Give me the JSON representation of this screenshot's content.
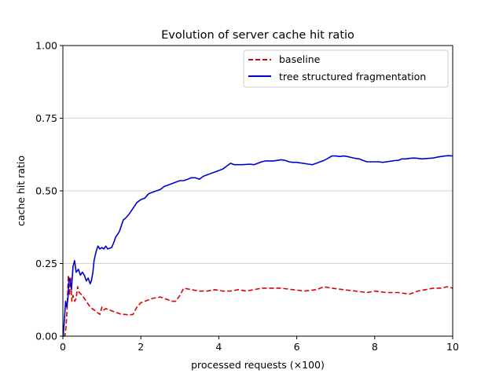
{
  "chart_data": {
    "type": "line",
    "title": "Evolution of server cache hit ratio",
    "xlabel": "processed requests (×100)",
    "ylabel": "cache hit ratio",
    "xlim": [
      0,
      10
    ],
    "ylim": [
      0,
      1
    ],
    "xticks": [
      0,
      2,
      4,
      6,
      8,
      10
    ],
    "xtick_labels": [
      "0",
      "2",
      "4",
      "6",
      "8",
      "10"
    ],
    "yticks": [
      0,
      0.25,
      0.5,
      0.75,
      1.0
    ],
    "ytick_labels": [
      "0.00",
      "0.25",
      "0.50",
      "0.75",
      "1.00"
    ],
    "grid": "horizontal",
    "legend_position": "top-right",
    "series": [
      {
        "name": "baseline",
        "color": "#dd0000",
        "style": "dashed",
        "points": [
          [
            0.01,
            0.0
          ],
          [
            0.05,
            0.0
          ],
          [
            0.08,
            0.03
          ],
          [
            0.11,
            0.1
          ],
          [
            0.14,
            0.21
          ],
          [
            0.17,
            0.14
          ],
          [
            0.2,
            0.2
          ],
          [
            0.23,
            0.12
          ],
          [
            0.26,
            0.14
          ],
          [
            0.3,
            0.12
          ],
          [
            0.34,
            0.13
          ],
          [
            0.38,
            0.17
          ],
          [
            0.42,
            0.15
          ],
          [
            0.5,
            0.14
          ],
          [
            0.6,
            0.12
          ],
          [
            0.7,
            0.1
          ],
          [
            0.8,
            0.09
          ],
          [
            0.9,
            0.08
          ],
          [
            0.95,
            0.075
          ],
          [
            1.0,
            0.1
          ],
          [
            1.05,
            0.09
          ],
          [
            1.1,
            0.095
          ],
          [
            1.2,
            0.09
          ],
          [
            1.3,
            0.085
          ],
          [
            1.4,
            0.08
          ],
          [
            1.5,
            0.075
          ],
          [
            1.6,
            0.075
          ],
          [
            1.7,
            0.073
          ],
          [
            1.8,
            0.075
          ],
          [
            1.9,
            0.1
          ],
          [
            2.0,
            0.115
          ],
          [
            2.1,
            0.12
          ],
          [
            2.2,
            0.125
          ],
          [
            2.3,
            0.13
          ],
          [
            2.5,
            0.135
          ],
          [
            2.6,
            0.13
          ],
          [
            2.8,
            0.12
          ],
          [
            2.9,
            0.12
          ],
          [
            3.0,
            0.14
          ],
          [
            3.1,
            0.165
          ],
          [
            3.3,
            0.16
          ],
          [
            3.5,
            0.155
          ],
          [
            3.7,
            0.155
          ],
          [
            3.9,
            0.16
          ],
          [
            4.1,
            0.155
          ],
          [
            4.3,
            0.155
          ],
          [
            4.5,
            0.16
          ],
          [
            4.7,
            0.155
          ],
          [
            4.9,
            0.16
          ],
          [
            5.1,
            0.165
          ],
          [
            5.3,
            0.165
          ],
          [
            5.6,
            0.165
          ],
          [
            5.9,
            0.16
          ],
          [
            6.2,
            0.155
          ],
          [
            6.5,
            0.16
          ],
          [
            6.7,
            0.17
          ],
          [
            6.9,
            0.165
          ],
          [
            7.2,
            0.16
          ],
          [
            7.5,
            0.155
          ],
          [
            7.8,
            0.15
          ],
          [
            8.0,
            0.155
          ],
          [
            8.3,
            0.15
          ],
          [
            8.6,
            0.15
          ],
          [
            8.9,
            0.145
          ],
          [
            9.1,
            0.155
          ],
          [
            9.3,
            0.16
          ],
          [
            9.5,
            0.165
          ],
          [
            9.7,
            0.165
          ],
          [
            9.85,
            0.17
          ],
          [
            10.0,
            0.165
          ]
        ]
      },
      {
        "name": "tree structured fragmentation",
        "color": "#0000cc",
        "style": "solid",
        "points": [
          [
            0.01,
            0.0
          ],
          [
            0.04,
            0.06
          ],
          [
            0.07,
            0.12
          ],
          [
            0.1,
            0.1
          ],
          [
            0.13,
            0.13
          ],
          [
            0.16,
            0.2
          ],
          [
            0.19,
            0.19
          ],
          [
            0.22,
            0.16
          ],
          [
            0.26,
            0.24
          ],
          [
            0.3,
            0.26
          ],
          [
            0.34,
            0.22
          ],
          [
            0.4,
            0.23
          ],
          [
            0.45,
            0.21
          ],
          [
            0.5,
            0.22
          ],
          [
            0.55,
            0.21
          ],
          [
            0.6,
            0.19
          ],
          [
            0.65,
            0.2
          ],
          [
            0.7,
            0.18
          ],
          [
            0.73,
            0.19
          ],
          [
            0.77,
            0.22
          ],
          [
            0.8,
            0.26
          ],
          [
            0.85,
            0.29
          ],
          [
            0.9,
            0.31
          ],
          [
            0.95,
            0.3
          ],
          [
            1.0,
            0.305
          ],
          [
            1.05,
            0.3
          ],
          [
            1.1,
            0.31
          ],
          [
            1.15,
            0.3
          ],
          [
            1.25,
            0.305
          ],
          [
            1.3,
            0.32
          ],
          [
            1.35,
            0.34
          ],
          [
            1.45,
            0.36
          ],
          [
            1.5,
            0.38
          ],
          [
            1.55,
            0.4
          ],
          [
            1.6,
            0.405
          ],
          [
            1.7,
            0.42
          ],
          [
            1.8,
            0.44
          ],
          [
            1.9,
            0.46
          ],
          [
            2.0,
            0.47
          ],
          [
            2.1,
            0.475
          ],
          [
            2.2,
            0.49
          ],
          [
            2.3,
            0.495
          ],
          [
            2.4,
            0.5
          ],
          [
            2.5,
            0.505
          ],
          [
            2.6,
            0.515
          ],
          [
            2.7,
            0.52
          ],
          [
            2.8,
            0.525
          ],
          [
            2.9,
            0.53
          ],
          [
            3.0,
            0.535
          ],
          [
            3.1,
            0.535
          ],
          [
            3.2,
            0.54
          ],
          [
            3.3,
            0.545
          ],
          [
            3.4,
            0.545
          ],
          [
            3.5,
            0.54
          ],
          [
            3.6,
            0.55
          ],
          [
            3.7,
            0.555
          ],
          [
            3.8,
            0.56
          ],
          [
            3.9,
            0.565
          ],
          [
            4.0,
            0.57
          ],
          [
            4.1,
            0.575
          ],
          [
            4.2,
            0.585
          ],
          [
            4.3,
            0.595
          ],
          [
            4.4,
            0.59
          ],
          [
            4.5,
            0.59
          ],
          [
            4.6,
            0.59
          ],
          [
            4.8,
            0.592
          ],
          [
            4.9,
            0.59
          ],
          [
            5.0,
            0.595
          ],
          [
            5.1,
            0.6
          ],
          [
            5.2,
            0.603
          ],
          [
            5.3,
            0.603
          ],
          [
            5.4,
            0.603
          ],
          [
            5.5,
            0.605
          ],
          [
            5.6,
            0.607
          ],
          [
            5.7,
            0.605
          ],
          [
            5.8,
            0.6
          ],
          [
            5.9,
            0.598
          ],
          [
            6.0,
            0.598
          ],
          [
            6.1,
            0.596
          ],
          [
            6.2,
            0.594
          ],
          [
            6.3,
            0.592
          ],
          [
            6.4,
            0.59
          ],
          [
            6.5,
            0.595
          ],
          [
            6.6,
            0.6
          ],
          [
            6.7,
            0.605
          ],
          [
            6.8,
            0.612
          ],
          [
            6.9,
            0.62
          ],
          [
            7.0,
            0.62
          ],
          [
            7.1,
            0.618
          ],
          [
            7.2,
            0.62
          ],
          [
            7.3,
            0.618
          ],
          [
            7.4,
            0.615
          ],
          [
            7.5,
            0.612
          ],
          [
            7.6,
            0.61
          ],
          [
            7.7,
            0.605
          ],
          [
            7.8,
            0.6
          ],
          [
            7.9,
            0.6
          ],
          [
            8.0,
            0.6
          ],
          [
            8.1,
            0.6
          ],
          [
            8.2,
            0.598
          ],
          [
            8.3,
            0.6
          ],
          [
            8.4,
            0.602
          ],
          [
            8.5,
            0.604
          ],
          [
            8.6,
            0.605
          ],
          [
            8.7,
            0.61
          ],
          [
            8.8,
            0.61
          ],
          [
            8.9,
            0.612
          ],
          [
            9.0,
            0.613
          ],
          [
            9.1,
            0.612
          ],
          [
            9.2,
            0.61
          ],
          [
            9.3,
            0.611
          ],
          [
            9.4,
            0.612
          ],
          [
            9.5,
            0.613
          ],
          [
            9.6,
            0.616
          ],
          [
            9.7,
            0.618
          ],
          [
            9.8,
            0.62
          ],
          [
            9.9,
            0.621
          ],
          [
            10.0,
            0.62
          ]
        ]
      }
    ]
  }
}
